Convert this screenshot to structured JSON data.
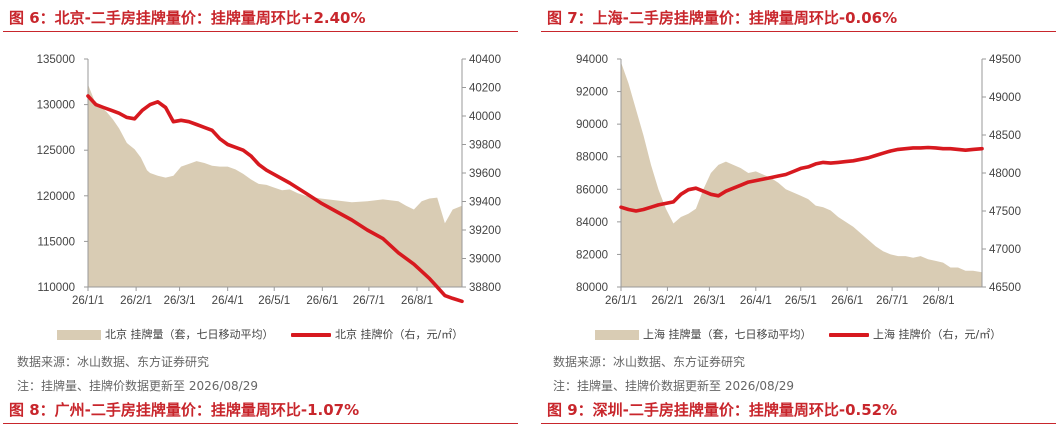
{
  "panels": [
    {
      "title": "图 6：北京-二手房挂牌量价：挂牌量周环比+2.40%",
      "legend": {
        "area_label": "北京 挂牌量（套，七日移动平均）",
        "line_label": "北京 挂牌价（右，元/㎡）"
      },
      "source": "数据来源：冰山数据、东方证券研究",
      "note": "注：挂牌量、挂牌价数据更新至 2026/08/29"
    },
    {
      "title": "图 7：上海-二手房挂牌量价：挂牌量周环比-0.06%",
      "legend": {
        "area_label": "上海 挂牌量（套，七日移动平均）",
        "line_label": "上海 挂牌价（右，元/㎡）"
      },
      "source": "数据来源：冰山数据、东方证券研究",
      "note": "注：挂牌量、挂牌价数据更新至 2026/08/29"
    }
  ],
  "footer_titles": {
    "left": "图 8：广州-二手房挂牌量价：挂牌量周环比-1.07%",
    "right": "图 9：深圳-二手房挂牌量价：挂牌量周环比-0.52%"
  },
  "colors": {
    "area": "#d9ccb4",
    "line": "#d7191f",
    "title": "#c8262c"
  },
  "chart_data": [
    {
      "type": "area+line",
      "x_tick_labels": [
        "26/1/1",
        "26/2/1",
        "26/3/1",
        "26/4/1",
        "26/5/1",
        "26/6/1",
        "26/7/1",
        "26/8/1"
      ],
      "x_range": [
        0,
        241
      ],
      "x_tick_days": [
        0,
        31,
        59,
        90,
        120,
        151,
        181,
        212
      ],
      "left_axis": {
        "ticks": [
          "110000",
          "115000",
          "120000",
          "125000",
          "130000",
          "135000"
        ],
        "ylim": [
          110000,
          135000
        ]
      },
      "right_axis": {
        "ticks": [
          "38800",
          "39000",
          "39200",
          "39400",
          "39600",
          "39800",
          "40000",
          "40200",
          "40400"
        ],
        "ylim": [
          38800,
          40400
        ]
      },
      "series": [
        {
          "name": "北京 挂牌量（套，七日移动平均）",
          "type": "area",
          "axis": "left",
          "x": [
            0,
            4,
            8,
            12,
            16,
            20,
            25,
            30,
            34,
            38,
            40,
            45,
            50,
            55,
            60,
            65,
            70,
            75,
            80,
            85,
            90,
            95,
            100,
            105,
            110,
            115,
            120,
            125,
            130,
            135,
            140,
            150,
            160,
            170,
            180,
            190,
            200,
            205,
            210,
            215,
            220,
            225,
            230,
            235,
            241
          ],
          "y": [
            132200,
            130500,
            129800,
            129200,
            128400,
            127400,
            125800,
            125100,
            124200,
            122800,
            122500,
            122200,
            122000,
            122200,
            123200,
            123500,
            123800,
            123600,
            123300,
            123200,
            123200,
            122900,
            122400,
            121800,
            121300,
            121200,
            120900,
            120600,
            120700,
            120300,
            120000,
            119700,
            119500,
            119300,
            119400,
            119600,
            119400,
            118900,
            118500,
            119400,
            119700,
            119800,
            117000,
            118500,
            118900
          ]
        },
        {
          "name": "北京 挂牌价（右，元/㎡）",
          "type": "line",
          "axis": "right",
          "x": [
            0,
            5,
            10,
            15,
            20,
            25,
            30,
            35,
            40,
            45,
            50,
            55,
            60,
            65,
            70,
            75,
            80,
            85,
            90,
            95,
            100,
            105,
            110,
            115,
            120,
            130,
            140,
            150,
            160,
            170,
            180,
            190,
            200,
            210,
            220,
            225,
            230,
            235,
            241
          ],
          "y": [
            40140,
            40080,
            40060,
            40040,
            40020,
            39990,
            39980,
            40040,
            40080,
            40100,
            40060,
            39960,
            39970,
            39960,
            39940,
            39920,
            39900,
            39840,
            39800,
            39780,
            39760,
            39720,
            39660,
            39620,
            39590,
            39530,
            39460,
            39390,
            39330,
            39270,
            39200,
            39140,
            39040,
            38960,
            38860,
            38800,
            38740,
            38720,
            38700
          ]
        }
      ]
    },
    {
      "type": "area+line",
      "x_tick_labels": [
        "26/1/1",
        "26/2/1",
        "26/3/1",
        "26/4/1",
        "26/5/1",
        "26/6/1",
        "26/7/1",
        "26/8/1"
      ],
      "x_range": [
        0,
        241
      ],
      "x_tick_days": [
        0,
        31,
        59,
        90,
        120,
        151,
        181,
        212
      ],
      "left_axis": {
        "ticks": [
          "80000",
          "82000",
          "84000",
          "86000",
          "88000",
          "90000",
          "92000",
          "94000"
        ],
        "ylim": [
          80000,
          94000
        ]
      },
      "right_axis": {
        "ticks": [
          "46500",
          "47000",
          "47500",
          "48000",
          "48500",
          "49000",
          "49500"
        ],
        "ylim": [
          46500,
          49500
        ]
      },
      "series": [
        {
          "name": "上海 挂牌量（套，七日移动平均）",
          "type": "area",
          "axis": "left",
          "x": [
            0,
            5,
            10,
            15,
            20,
            25,
            30,
            35,
            40,
            45,
            50,
            55,
            60,
            65,
            70,
            75,
            80,
            85,
            90,
            95,
            100,
            105,
            110,
            115,
            120,
            125,
            130,
            135,
            140,
            145,
            150,
            155,
            160,
            165,
            170,
            175,
            180,
            185,
            190,
            195,
            200,
            205,
            210,
            215,
            220,
            225,
            230,
            235,
            241
          ],
          "y": [
            93800,
            92500,
            90900,
            89300,
            87500,
            86000,
            84800,
            83900,
            84300,
            84500,
            84800,
            86000,
            87000,
            87500,
            87700,
            87500,
            87300,
            87000,
            87100,
            86900,
            86700,
            86400,
            86000,
            85800,
            85600,
            85400,
            85000,
            84900,
            84700,
            84300,
            84000,
            83700,
            83300,
            82900,
            82500,
            82200,
            82000,
            81900,
            81900,
            81800,
            81900,
            81700,
            81600,
            81500,
            81200,
            81200,
            81000,
            81000,
            80900
          ]
        },
        {
          "name": "上海 挂牌价（右，元/㎡）",
          "type": "line",
          "axis": "right",
          "x": [
            0,
            5,
            10,
            15,
            20,
            25,
            30,
            35,
            40,
            45,
            50,
            55,
            60,
            65,
            70,
            75,
            80,
            85,
            90,
            95,
            100,
            105,
            110,
            115,
            120,
            125,
            130,
            135,
            140,
            145,
            150,
            155,
            160,
            165,
            170,
            175,
            180,
            185,
            190,
            195,
            200,
            205,
            210,
            215,
            220,
            225,
            230,
            235,
            241
          ],
          "y": [
            47550,
            47520,
            47500,
            47520,
            47550,
            47580,
            47600,
            47620,
            47720,
            47780,
            47800,
            47760,
            47720,
            47700,
            47760,
            47800,
            47840,
            47880,
            47900,
            47920,
            47940,
            47960,
            47980,
            48020,
            48060,
            48080,
            48120,
            48140,
            48130,
            48140,
            48150,
            48160,
            48180,
            48200,
            48230,
            48260,
            48290,
            48310,
            48320,
            48330,
            48330,
            48335,
            48330,
            48320,
            48320,
            48310,
            48300,
            48310,
            48320
          ]
        }
      ]
    }
  ]
}
